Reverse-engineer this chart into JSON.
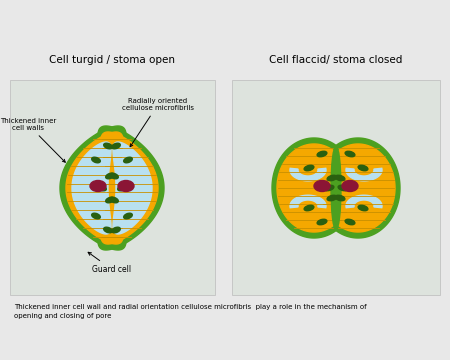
{
  "bg_color": "#e8e8e8",
  "panel_bg": "#dde3dd",
  "title_left": "Cell turgid / stoma open",
  "title_right": "Cell flaccid/ stoma closed",
  "footer_text": "Thickened inner cell wall and radial orientation cellulose microfibris  play a role in the mechanism of\nopening and closing of pore",
  "label_thickened": "Thickened inner\ncell walls",
  "label_radially": "Radially oriented\ncellulose microfibrils",
  "label_guard": "Guard cell",
  "colors": {
    "green_border": "#4ca020",
    "orange_fill": "#f5a800",
    "blue_vacuole": "#b8e0f0",
    "dark_green_chloro": "#2a6010",
    "nucleus": "#8b1535",
    "stripe_line": "#c89000",
    "panel_bg": "#dde3dd"
  }
}
